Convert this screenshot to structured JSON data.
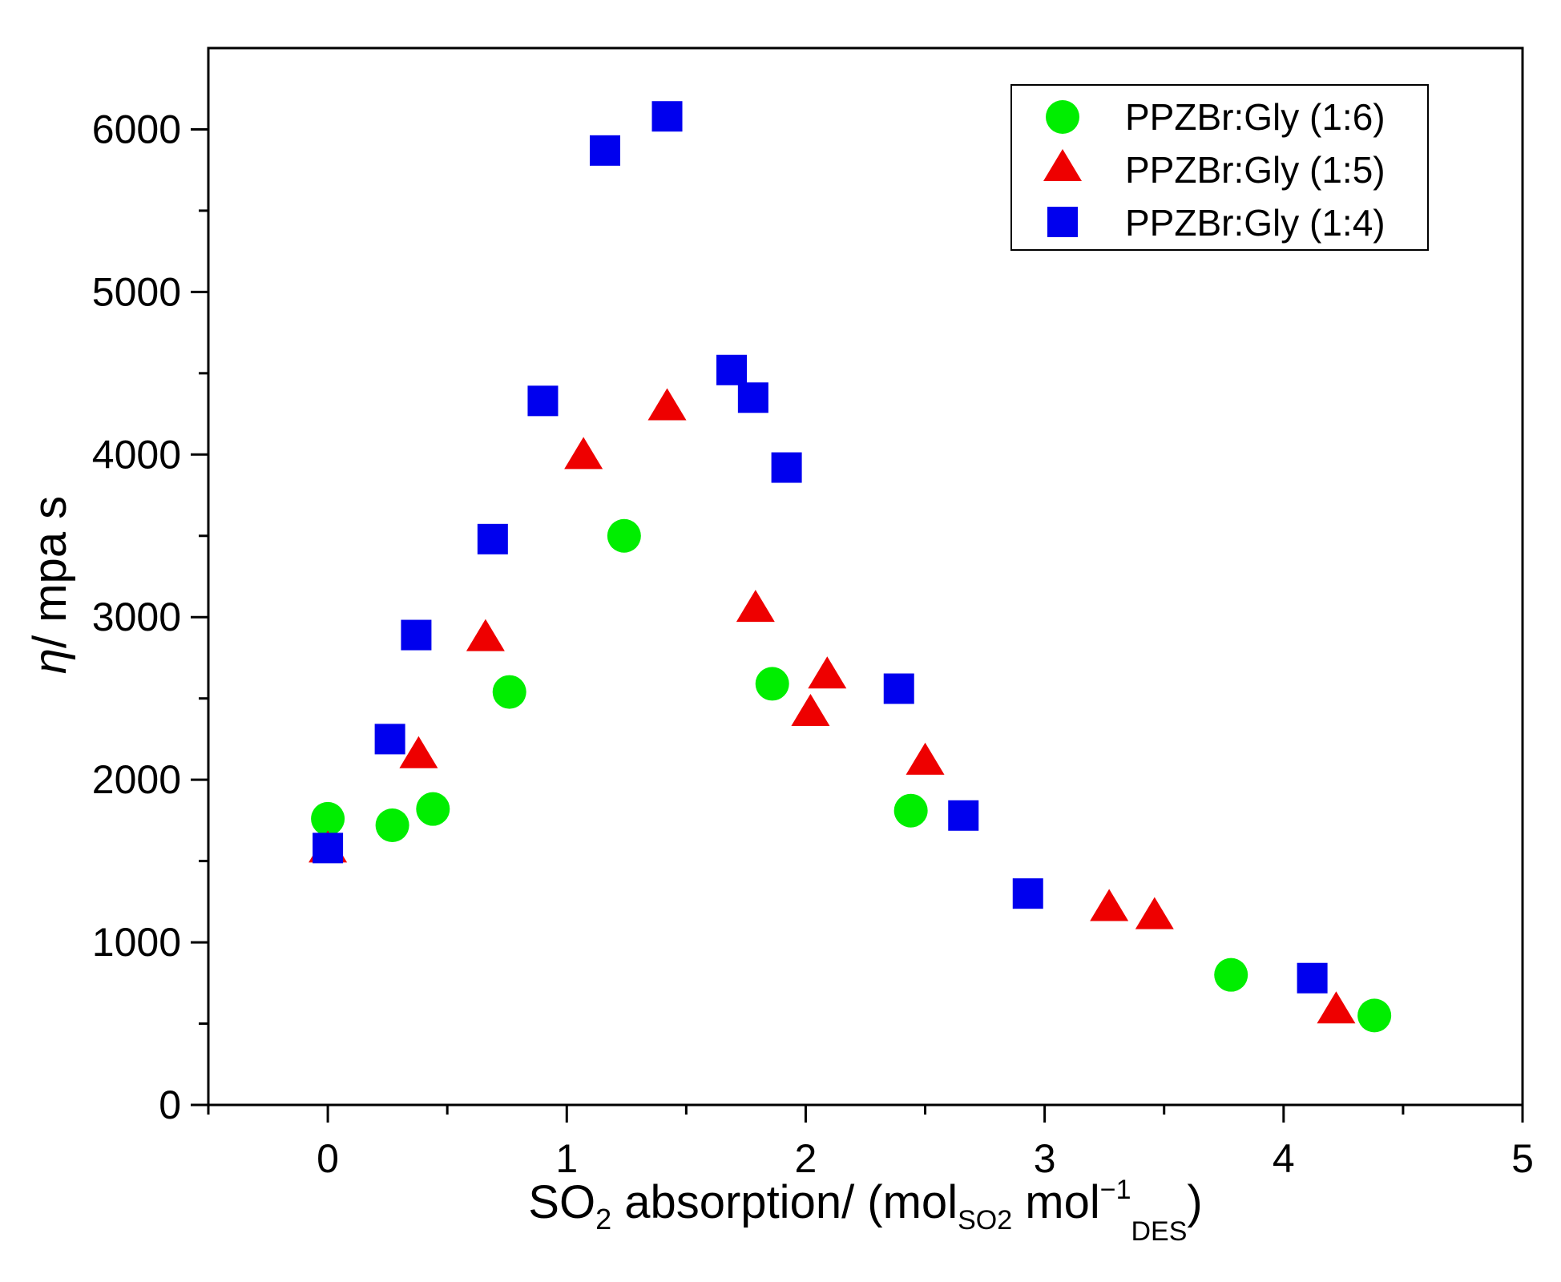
{
  "chart_data": {
    "type": "scatter",
    "title": "",
    "xlabel": {
      "prefix": "SO",
      "prefix_sub": "2",
      "main": " absorption/ (mol",
      "sub1": "SO2",
      "mid": " mol",
      "sup": "−1",
      "sub2": "DES",
      "end": ")"
    },
    "ylabel": {
      "symbol": "η",
      "rest": "/ mpa s"
    },
    "xlim": [
      -0.5,
      5
    ],
    "ylim": [
      0,
      6500
    ],
    "xticks": [
      0,
      1,
      2,
      3,
      4,
      5
    ],
    "yticks": [
      0,
      1000,
      2000,
      3000,
      4000,
      5000,
      6000
    ],
    "xtick_labels": [
      "0",
      "1",
      "2",
      "3",
      "4",
      "5"
    ],
    "ytick_labels": [
      "0",
      "1000",
      "2000",
      "3000",
      "4000",
      "5000",
      "6000"
    ],
    "grid": false,
    "legend_position": "top-right",
    "series": [
      {
        "name": "PPZBr:Gly (1:6)",
        "marker": "circle",
        "color": "#00ee00",
        "x": [
          0.0,
          0.27,
          0.44,
          0.76,
          1.24,
          1.86,
          2.44,
          3.78,
          4.38
        ],
        "y": [
          1760,
          1720,
          1820,
          2540,
          3500,
          2590,
          1810,
          800,
          550
        ]
      },
      {
        "name": "PPZBr:Gly (1:5)",
        "marker": "triangle",
        "color": "#ee0000",
        "x": [
          0.0,
          0.38,
          0.66,
          1.07,
          1.42,
          1.79,
          2.02,
          2.09,
          2.5,
          3.27,
          3.46,
          4.22
        ],
        "y": [
          1570,
          2150,
          2870,
          3990,
          4290,
          3050,
          2410,
          2640,
          2110,
          1210,
          1160,
          580
        ]
      },
      {
        "name": "PPZBr:Gly (1:4)",
        "marker": "square",
        "color": "#0000ee",
        "x": [
          0.0,
          0.26,
          0.37,
          0.69,
          0.9,
          1.16,
          1.42,
          1.69,
          1.78,
          1.92,
          2.39,
          2.66,
          2.93,
          4.12
        ],
        "y": [
          1580,
          2250,
          2890,
          3480,
          4330,
          5870,
          6080,
          4520,
          4350,
          3920,
          2560,
          1780,
          1300,
          780
        ]
      }
    ]
  }
}
